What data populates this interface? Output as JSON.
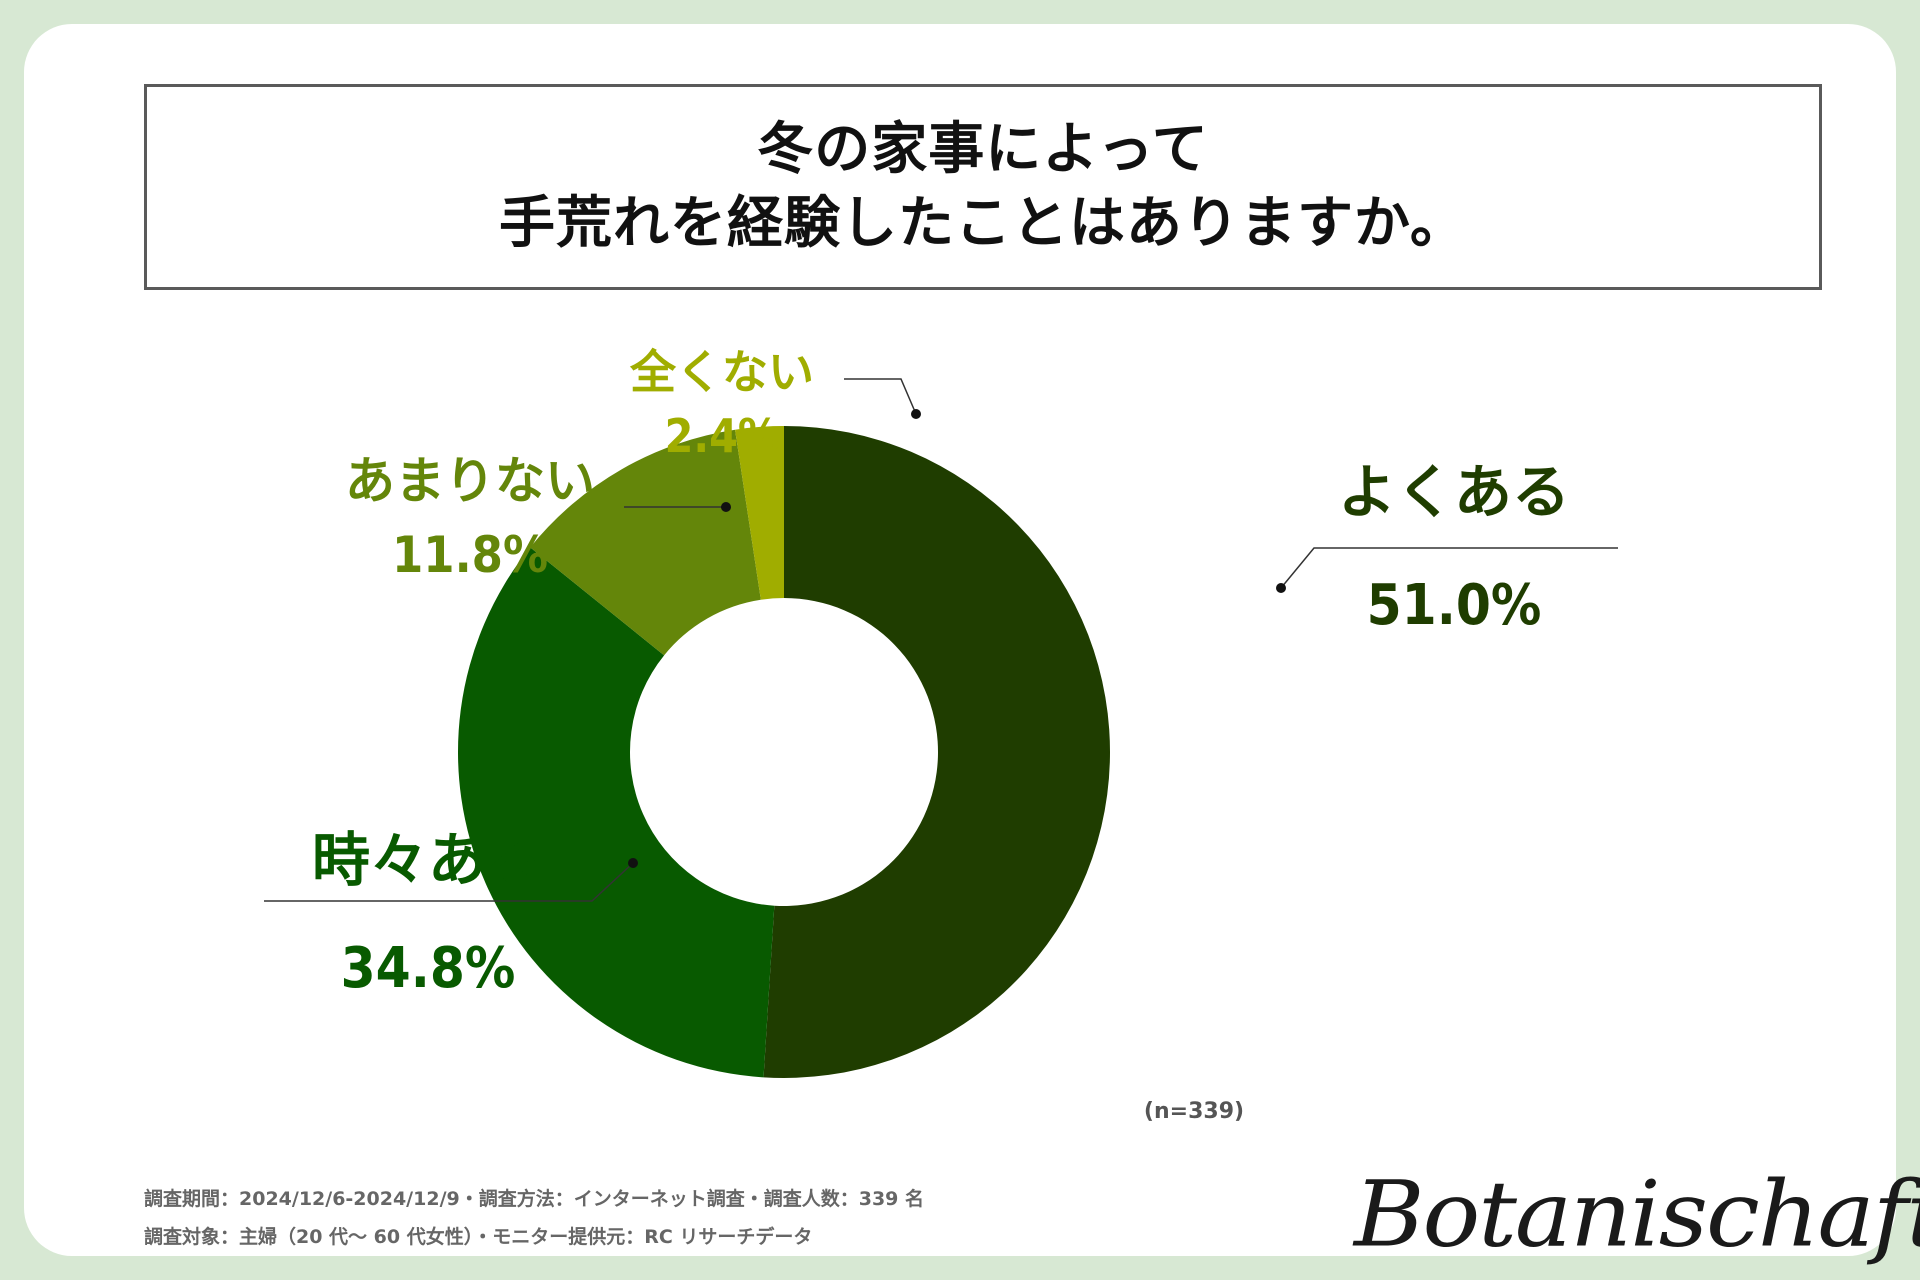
{
  "title": {
    "line1": "冬の家事によって",
    "line2": "手荒れを経験したことはありますか。"
  },
  "sample_size": "(n=339)",
  "footer": {
    "line1": "調査期間：2024/12/6-2024/12/9・調査方法：インターネット調査・調査人数：339 名",
    "line2": "調査対象：主婦（20 代～ 60 代女性）・モニター提供元：RC リサーチデータ"
  },
  "logo": "Botanischaft",
  "colors": {
    "background": "#d7e8d3",
    "card": "#ffffff",
    "often": "#1f3d00",
    "sometimes": "#085a00",
    "rarely": "#64860a",
    "never": "#a0ad00",
    "leader": "#333333"
  },
  "chart_data": {
    "type": "pie",
    "style": "donut",
    "title": "冬の家事によって 手荒れを経験したことはありますか。",
    "n": 339,
    "categories": [
      "よくある",
      "時々ある",
      "あまりない",
      "全くない"
    ],
    "values": [
      51.0,
      34.8,
      11.8,
      2.4
    ],
    "value_labels": [
      "51.0%",
      "34.8%",
      "11.8%",
      "2.4%"
    ],
    "colors": [
      "#1f3d00",
      "#085a00",
      "#64860a",
      "#a0ad00"
    ],
    "start_angle": "12 o'clock",
    "direction": "clockwise",
    "legend": "none"
  }
}
